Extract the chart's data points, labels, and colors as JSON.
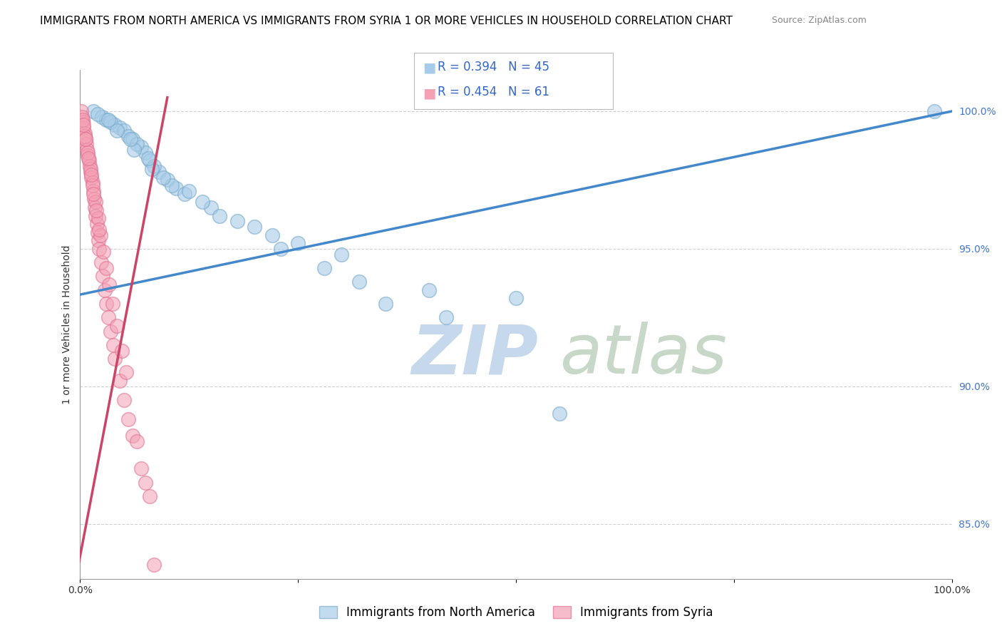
{
  "title": "IMMIGRANTS FROM NORTH AMERICA VS IMMIGRANTS FROM SYRIA 1 OR MORE VEHICLES IN HOUSEHOLD CORRELATION CHART",
  "source": "Source: ZipAtlas.com",
  "ylabel": "1 or more Vehicles in Household",
  "xlim": [
    0,
    100
  ],
  "ylim": [
    83,
    101.5
  ],
  "yticks": [
    85.0,
    90.0,
    95.0,
    100.0
  ],
  "ytick_labels": [
    "85.0%",
    "90.0%",
    "95.0%",
    "100.0%"
  ],
  "xticks": [
    0,
    25,
    50,
    75,
    100
  ],
  "xtick_labels": [
    "0.0%",
    "",
    "",
    "",
    "100.0%"
  ],
  "legend_entries": [
    {
      "label": "Immigrants from North America",
      "color": "#A8CCE8",
      "R": 0.394,
      "N": 45
    },
    {
      "label": "Immigrants from Syria",
      "color": "#F4A0B5",
      "R": 0.454,
      "N": 61
    }
  ],
  "blue_scatter_x": [
    1.5,
    2.5,
    3.0,
    4.0,
    4.5,
    5.0,
    5.5,
    6.0,
    7.0,
    7.5,
    8.0,
    9.0,
    10.0,
    11.0,
    12.0,
    15.0,
    18.0,
    20.0,
    25.0,
    30.0,
    40.0,
    50.0,
    98.0,
    3.5,
    6.5,
    8.5,
    14.0,
    22.0,
    28.0,
    35.0,
    42.0,
    55.0,
    2.0,
    4.2,
    6.2,
    8.2,
    10.5,
    16.0,
    23.0,
    32.0,
    12.5,
    7.8,
    5.8,
    3.2,
    9.5
  ],
  "blue_scatter_y": [
    100.0,
    99.8,
    99.7,
    99.5,
    99.4,
    99.3,
    99.1,
    99.0,
    98.7,
    98.5,
    98.2,
    97.8,
    97.5,
    97.2,
    97.0,
    96.5,
    96.0,
    95.8,
    95.2,
    94.8,
    93.5,
    93.2,
    100.0,
    99.6,
    98.8,
    98.0,
    96.7,
    95.5,
    94.3,
    93.0,
    92.5,
    89.0,
    99.9,
    99.3,
    98.6,
    97.9,
    97.3,
    96.2,
    95.0,
    93.8,
    97.1,
    98.3,
    99.0,
    99.7,
    97.6
  ],
  "pink_scatter_x": [
    0.1,
    0.2,
    0.3,
    0.4,
    0.5,
    0.6,
    0.7,
    0.8,
    0.9,
    1.0,
    1.1,
    1.2,
    1.3,
    1.4,
    1.5,
    1.6,
    1.7,
    1.8,
    1.9,
    2.0,
    2.1,
    2.2,
    2.4,
    2.6,
    2.8,
    3.0,
    3.2,
    3.5,
    3.8,
    4.0,
    4.5,
    5.0,
    5.5,
    6.0,
    7.0,
    8.0,
    0.25,
    0.55,
    0.85,
    1.15,
    1.45,
    1.75,
    2.05,
    2.35,
    2.65,
    2.95,
    3.3,
    3.7,
    4.2,
    4.8,
    5.3,
    6.5,
    7.5,
    0.35,
    0.65,
    0.95,
    1.25,
    1.55,
    1.85,
    2.15,
    8.5
  ],
  "pink_scatter_y": [
    100.0,
    99.8,
    99.6,
    99.4,
    99.2,
    99.0,
    98.8,
    98.6,
    98.4,
    98.2,
    98.0,
    97.8,
    97.6,
    97.4,
    97.1,
    96.8,
    96.5,
    96.2,
    95.9,
    95.6,
    95.3,
    95.0,
    94.5,
    94.0,
    93.5,
    93.0,
    92.5,
    92.0,
    91.5,
    91.0,
    90.2,
    89.5,
    88.8,
    88.2,
    87.0,
    86.0,
    99.7,
    99.1,
    98.5,
    97.9,
    97.3,
    96.7,
    96.1,
    95.5,
    94.9,
    94.3,
    93.7,
    93.0,
    92.2,
    91.3,
    90.5,
    88.0,
    86.5,
    99.5,
    99.0,
    98.3,
    97.7,
    97.0,
    96.4,
    95.7,
    83.5
  ],
  "blue_line_x": [
    -2,
    100
  ],
  "blue_line_y": [
    93.2,
    100.0
  ],
  "pink_line_x": [
    -0.5,
    10.0
  ],
  "pink_line_y": [
    83.0,
    100.5
  ],
  "watermark_zip": "ZIP",
  "watermark_atlas": "atlas",
  "watermark_color": "#C8DCEE",
  "title_fontsize": 11,
  "axis_label_fontsize": 10,
  "tick_fontsize": 10,
  "legend_fontsize": 12,
  "blue_color": "#A8CCE8",
  "blue_edge_color": "#7AABCC",
  "pink_color": "#F4A0B5",
  "pink_edge_color": "#E07090",
  "blue_line_color": "#4488CC",
  "pink_line_color": "#CC4466",
  "background_color": "#FFFFFF",
  "grid_color": "#CCCCCC"
}
